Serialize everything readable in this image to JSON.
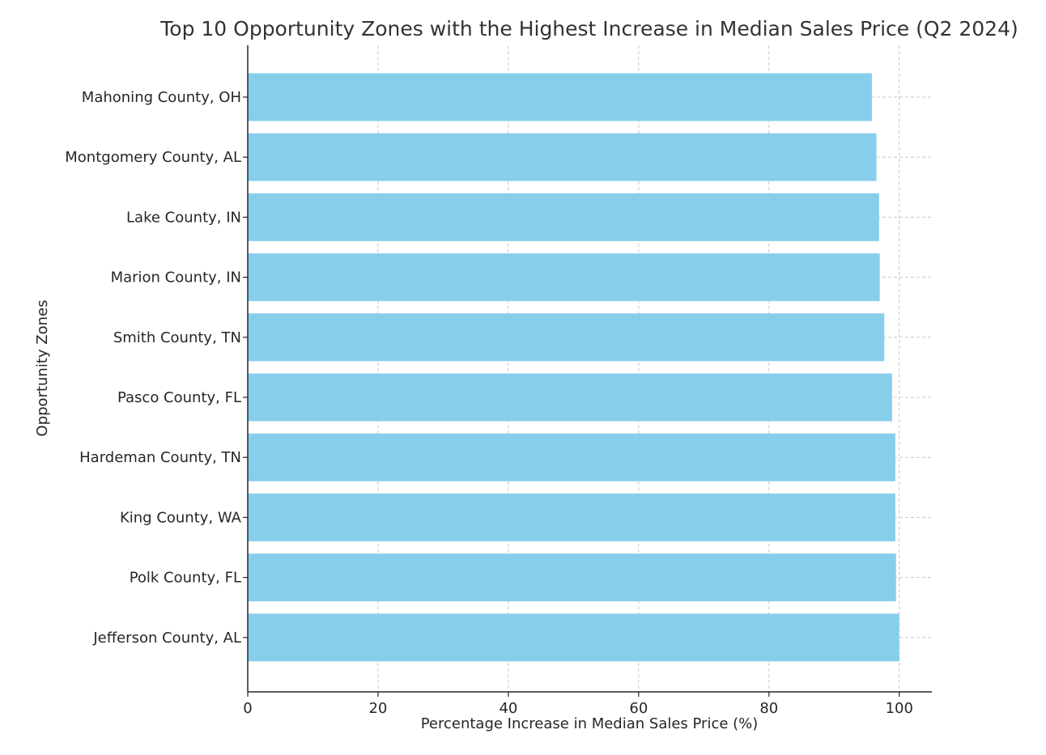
{
  "chart_data": {
    "type": "bar",
    "orientation": "horizontal",
    "title": "Top 10 Opportunity Zones with the Highest Increase in Median Sales Price (Q2 2024)",
    "xlabel": "Percentage Increase in Median Sales Price (%)",
    "ylabel": "Opportunity Zones",
    "categories": [
      "Mahoning County, OH",
      "Montgomery County, AL",
      "Lake County, IN",
      "Marion County, IN",
      "Smith County, TN",
      "Pasco County, FL",
      "Hardeman County, TN",
      "King County, WA",
      "Polk County, FL",
      "Jefferson County, AL"
    ],
    "values": [
      95.8,
      96.5,
      96.9,
      97.0,
      97.7,
      98.9,
      99.4,
      99.4,
      99.5,
      100.0
    ],
    "xlim": [
      0,
      105
    ],
    "xticks": [
      0,
      20,
      40,
      60,
      80,
      100
    ],
    "grid": true,
    "bar_color": "#87ceeb",
    "grid_color": "#c8c8c8",
    "axis_color": "#262626"
  }
}
